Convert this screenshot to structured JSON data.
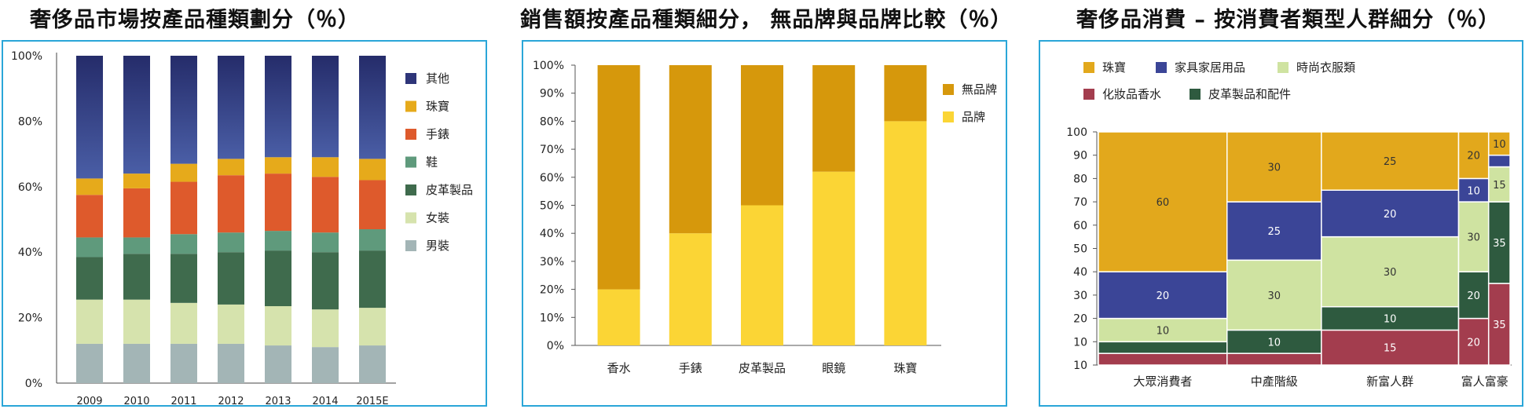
{
  "charts": {
    "c1": {
      "title": "奢侈品市場按產品種類劃分（％）",
      "chart_data": {
        "type": "bar",
        "stacked": true,
        "categories": [
          "2009",
          "2010",
          "2011",
          "2012",
          "2013",
          "2014",
          "2015E"
        ],
        "y_ticks": [
          "0%",
          "20%",
          "40%",
          "60%",
          "80%",
          "100%"
        ],
        "ylim": [
          0,
          100
        ],
        "series": [
          {
            "name": "男裝",
            "color": "#a3b5b6",
            "values": [
              12,
              12,
              12,
              12,
              11.5,
              11,
              11.5
            ]
          },
          {
            "name": "女裝",
            "color": "#d6e3ad",
            "values": [
              13.5,
              13.5,
              12.5,
              12,
              12,
              11.5,
              11.5
            ]
          },
          {
            "name": "皮革製品",
            "color": "#3f6b4d",
            "values": [
              13,
              14,
              15,
              16,
              17,
              17.5,
              17.5
            ]
          },
          {
            "name": "鞋",
            "color": "#5f9a7c",
            "values": [
              6,
              5,
              6,
              6,
              6,
              6,
              6.5
            ]
          },
          {
            "name": "手錶",
            "color": "#de5a2c",
            "values": [
              13,
              15,
              16,
              17.5,
              17.5,
              17,
              15
            ]
          },
          {
            "name": "珠寶",
            "color": "#e6aa1b",
            "values": [
              5,
              4.5,
              5.5,
              5,
              5,
              6,
              6.5
            ]
          },
          {
            "name": "其他",
            "color": "#2e3579",
            "values": [
              37.5,
              36,
              33,
              31.5,
              31,
              31,
              31.5
            ]
          }
        ],
        "legend_order": [
          "其他",
          "珠寶",
          "手錶",
          "鞋",
          "皮革製品",
          "女裝",
          "男裝"
        ]
      }
    },
    "c2": {
      "title": "銷售額按產品種類細分， 無品牌與品牌比較（％）",
      "chart_data": {
        "type": "bar",
        "stacked": true,
        "categories": [
          "香水",
          "手錶",
          "皮革製品",
          "眼鏡",
          "珠寶"
        ],
        "y_ticks": [
          "0%",
          "10%",
          "20%",
          "30%",
          "40%",
          "50%",
          "60%",
          "70%",
          "80%",
          "90%",
          "100%"
        ],
        "ylim": [
          0,
          100
        ],
        "series": [
          {
            "name": "品牌",
            "color": "#fbd535",
            "values": [
              20,
              40,
              50,
              62,
              80
            ]
          },
          {
            "name": "無品牌",
            "color": "#d6980c",
            "values": [
              80,
              60,
              50,
              38,
              20
            ]
          }
        ],
        "legend_order": [
          "無品牌",
          "品牌"
        ]
      }
    },
    "c3": {
      "title": "奢侈品消費 – 按消費者類型人群細分（％）",
      "chart_data": {
        "type": "mekko",
        "y_ticks": [
          "10",
          "10",
          "20",
          "30",
          "40",
          "50",
          "60",
          "70",
          "80",
          "90",
          "100"
        ],
        "ylim": [
          0,
          100
        ],
        "legend": [
          {
            "name": "珠寶",
            "color": "#e2a81c"
          },
          {
            "name": "家具家居用品",
            "color": "#3b4597"
          },
          {
            "name": "時尚衣服類",
            "color": "#cfe3a1"
          },
          {
            "name": "化妝品香水",
            "color": "#a33d4e"
          },
          {
            "name": "皮革製品和配件",
            "color": "#2e5a3f"
          }
        ],
        "columns": [
          {
            "label": "大眾消費者",
            "width_share": 30,
            "segments": [
              {
                "name": "化妝品香水",
                "value": 5,
                "label": ""
              },
              {
                "name": "皮革製品和配件",
                "value": 5,
                "label": ""
              },
              {
                "name": "時尚衣服類",
                "value": 10,
                "label": "10"
              },
              {
                "name": "家具家居用品",
                "value": 20,
                "label": "20"
              },
              {
                "name": "珠寶",
                "value": 60,
                "label": "60"
              }
            ]
          },
          {
            "label": "中產階級",
            "width_share": 22,
            "segments": [
              {
                "name": "化妝品香水",
                "value": 5,
                "label": ""
              },
              {
                "name": "皮革製品和配件",
                "value": 10,
                "label": "10"
              },
              {
                "name": "時尚衣服類",
                "value": 30,
                "label": "30"
              },
              {
                "name": "家具家居用品",
                "value": 25,
                "label": "25"
              },
              {
                "name": "珠寶",
                "value": 30,
                "label": "30"
              }
            ]
          },
          {
            "label": "新富人群",
            "width_share": 32,
            "segments": [
              {
                "name": "化妝品香水",
                "value": 15,
                "label": "15"
              },
              {
                "name": "皮革製品和配件",
                "value": 10,
                "label": "10"
              },
              {
                "name": "時尚衣服類",
                "value": 30,
                "label": "30"
              },
              {
                "name": "家具家居用品",
                "value": 20,
                "label": "20"
              },
              {
                "name": "珠寶",
                "value": 25,
                "label": "25"
              }
            ]
          },
          {
            "label": "富人富豪",
            "width_share": 7,
            "segments": [
              {
                "name": "化妝品香水",
                "value": 20,
                "label": "20"
              },
              {
                "name": "皮革製品和配件",
                "value": 20,
                "label": "20"
              },
              {
                "name": "時尚衣服類",
                "value": 30,
                "label": "30"
              },
              {
                "name": "家具家居用品",
                "value": 10,
                "label": "10"
              },
              {
                "name": "珠寶",
                "value": 20,
                "label": "20"
              }
            ]
          },
          {
            "label": "",
            "width_share": 5,
            "segments": [
              {
                "name": "化妝品香水",
                "value": 35,
                "label": "35"
              },
              {
                "name": "皮革製品和配件",
                "value": 35,
                "label": "35"
              },
              {
                "name": "時尚衣服類",
                "value": 15,
                "label": "15"
              },
              {
                "name": "家具家居用品",
                "value": 5,
                "label": ""
              },
              {
                "name": "珠寶",
                "value": 10,
                "label": "10"
              }
            ]
          }
        ]
      }
    }
  }
}
